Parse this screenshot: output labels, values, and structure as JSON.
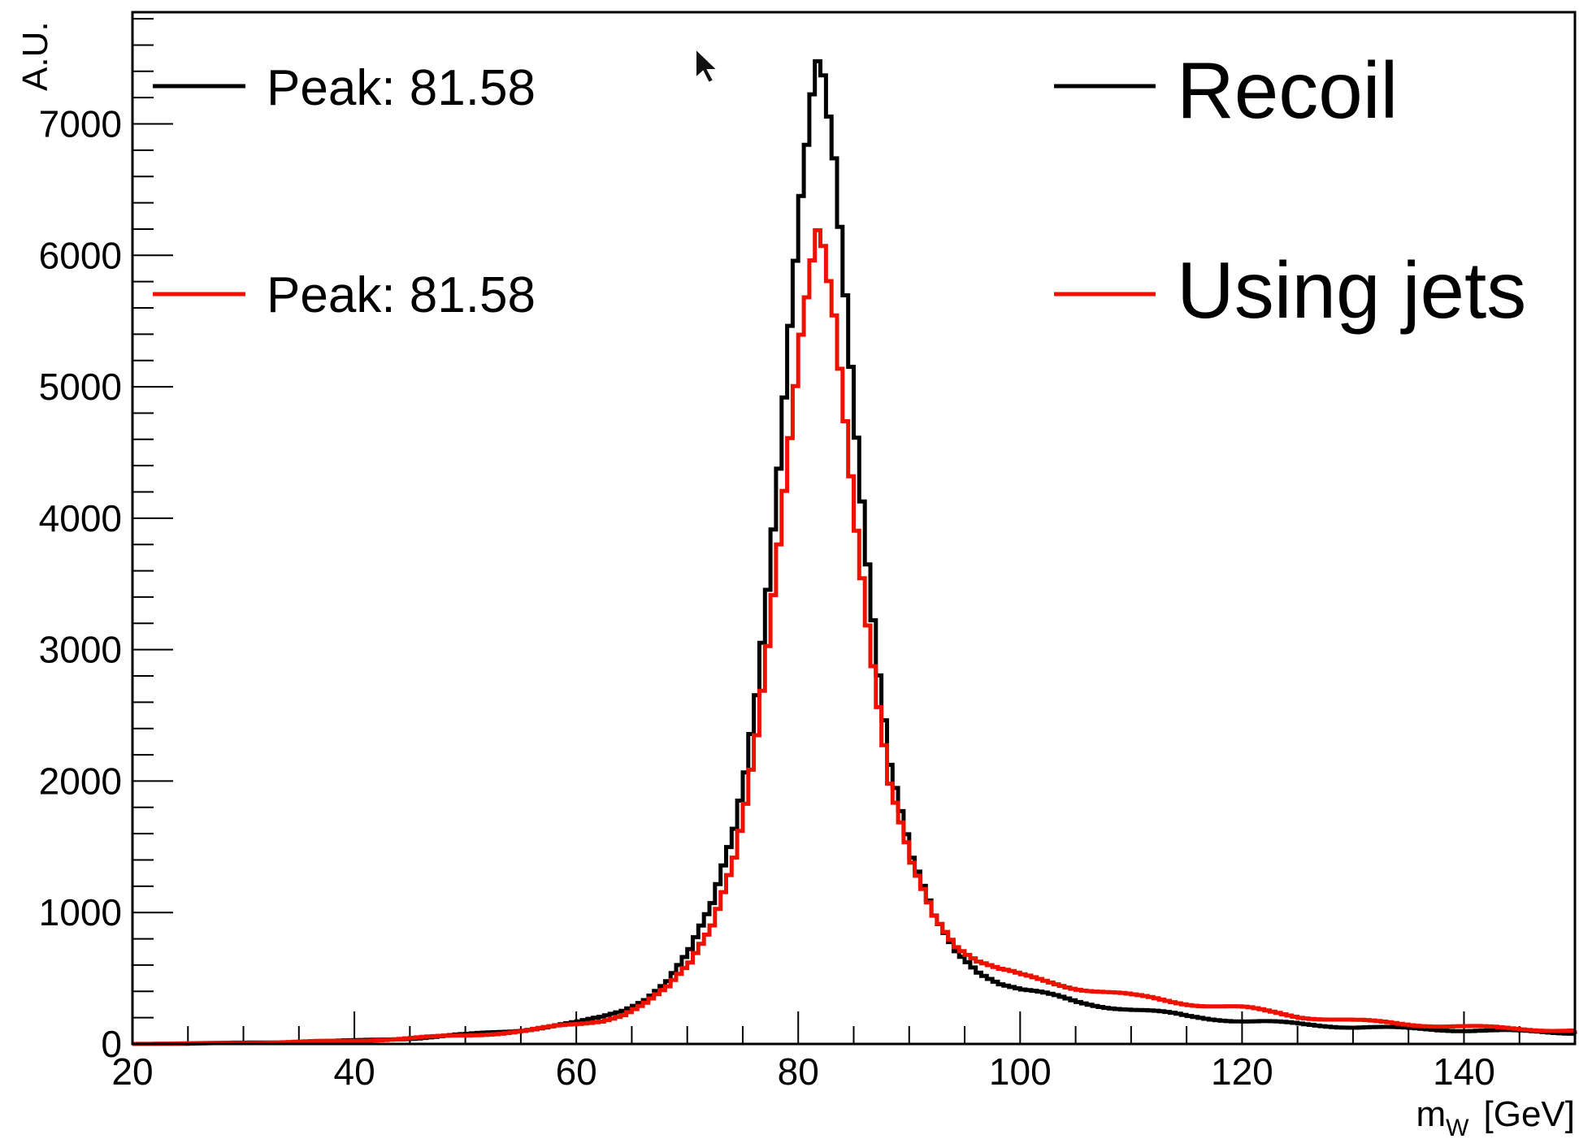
{
  "chart_data": {
    "type": "line",
    "title": "",
    "xlabel": "m",
    "xlabel_sub": "W",
    "xlabel_unit": "[GeV]",
    "ylabel": "A.U.",
    "xlim": [
      20,
      150
    ],
    "ylim": [
      0,
      7850
    ],
    "x_ticks": [
      20,
      40,
      60,
      80,
      100,
      120,
      140
    ],
    "x_tick_labels": [
      "20",
      "40",
      "60",
      "80",
      "100",
      "120",
      "140"
    ],
    "y_ticks": [
      0,
      1000,
      2000,
      3000,
      4000,
      5000,
      6000,
      7000
    ],
    "y_tick_labels": [
      "0",
      "1000",
      "2000",
      "3000",
      "4000",
      "5000",
      "6000",
      "7000"
    ],
    "grid": false,
    "x": [
      20,
      30,
      40,
      45,
      50,
      55,
      60,
      62,
      64,
      66,
      68,
      70,
      72,
      74,
      75,
      76,
      77,
      78,
      79,
      80,
      81,
      81.5,
      82,
      83,
      84,
      85,
      86,
      87,
      88,
      90,
      92,
      94,
      96,
      98,
      100,
      105,
      110,
      115,
      120,
      125,
      130,
      135,
      140,
      145,
      150
    ],
    "series": [
      {
        "name": "Recoil",
        "color": "#000000",
        "values": [
          0,
          8,
          25,
          45,
          70,
          110,
          160,
          200,
          260,
          350,
          480,
          700,
          1050,
          1650,
          2100,
          2700,
          3500,
          4400,
          5450,
          6400,
          7150,
          7400,
          7300,
          6700,
          5700,
          4650,
          3700,
          2850,
          2150,
          1400,
          950,
          700,
          560,
          470,
          410,
          320,
          260,
          210,
          175,
          150,
          130,
          115,
          105,
          95,
          85
        ]
      },
      {
        "name": "Using jets",
        "color": "#ee1100",
        "values": [
          0,
          8,
          25,
          45,
          65,
          100,
          150,
          180,
          230,
          310,
          420,
          610,
          920,
          1450,
          1850,
          2350,
          3000,
          3750,
          4550,
          5350,
          5950,
          6200,
          6100,
          5600,
          4800,
          3950,
          3200,
          2550,
          1950,
          1350,
          980,
          760,
          640,
          560,
          510,
          430,
          360,
          310,
          270,
          210,
          175,
          150,
          130,
          115,
          100
        ]
      }
    ],
    "legend": {
      "placement": "top",
      "left_entries": [
        {
          "label": "Peak: 81.58",
          "color": "#000000"
        },
        {
          "label": "Peak: 81.58",
          "color": "#ee1100"
        }
      ],
      "right_entries": [
        {
          "label": "Recoil",
          "color": "#000000"
        },
        {
          "label": "Using jets",
          "color": "#ee1100"
        }
      ]
    }
  }
}
